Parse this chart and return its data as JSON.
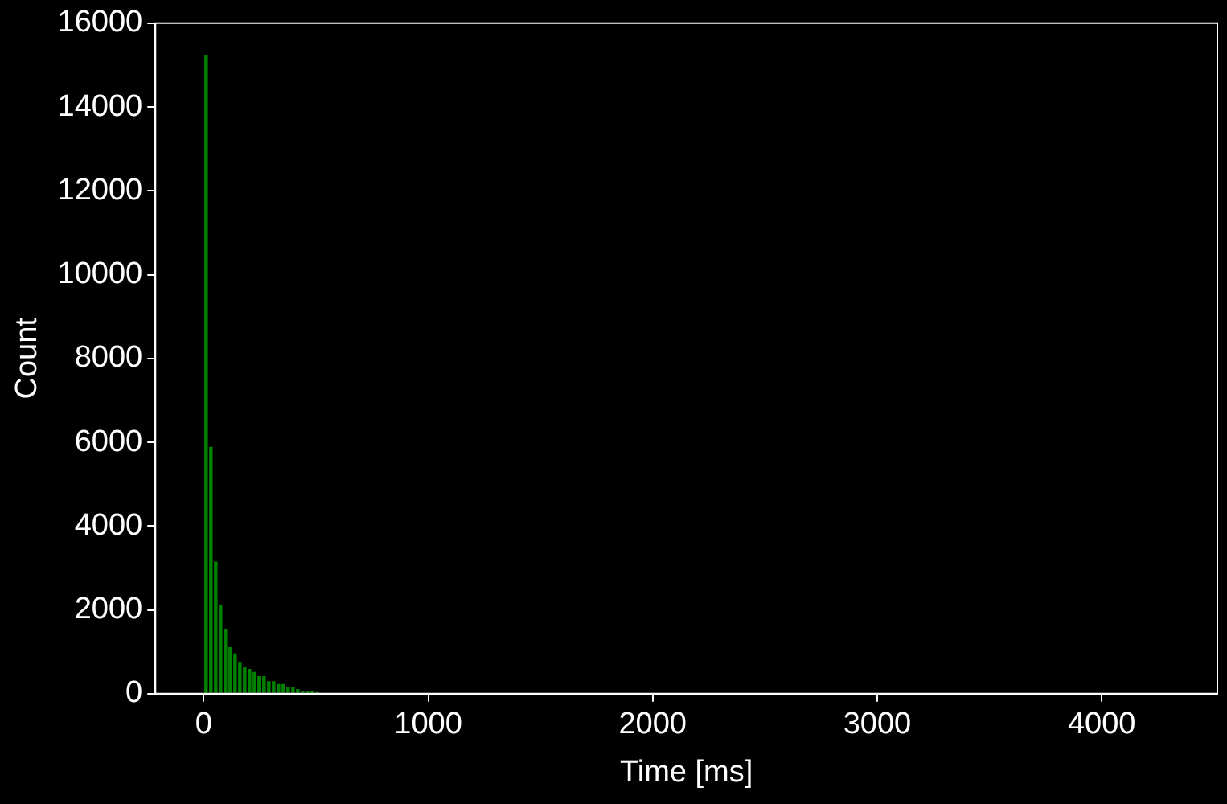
{
  "chart_data": {
    "type": "histogram",
    "xlabel": "Time [ms]",
    "ylabel": "Count",
    "color": "#008000",
    "bins": [
      0,
      21.5,
      43,
      64.5,
      86,
      107.5,
      129,
      150.5,
      172,
      193.5,
      215,
      236.5,
      258,
      279.5,
      301,
      322.5,
      344,
      365.5,
      387,
      408.5,
      430,
      451.5,
      473,
      494.5,
      516
    ],
    "values": [
      15250,
      5890,
      3150,
      2120,
      1550,
      1110,
      960,
      740,
      640,
      590,
      520,
      420,
      420,
      300,
      300,
      230,
      230,
      150,
      150,
      110,
      75,
      75,
      75,
      40
    ],
    "xlim": [
      -215,
      4515
    ],
    "xticks": [
      0,
      1000,
      2000,
      3000,
      4000
    ],
    "ylim": [
      0,
      16000
    ],
    "yticks": [
      0,
      2000,
      4000,
      6000,
      8000,
      10000,
      12000,
      14000,
      16000
    ]
  }
}
